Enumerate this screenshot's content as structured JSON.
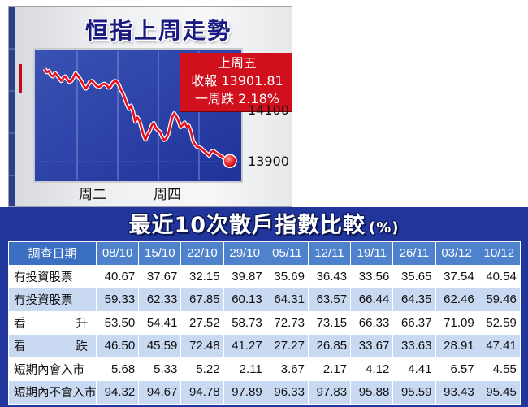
{
  "top": {
    "title": "恒指上周走勢",
    "info": {
      "line1": "上周五",
      "line2": "收報 13901.81",
      "line3": "一周跌 2.18%"
    }
  },
  "chart_data": {
    "type": "line",
    "title": "恒指上周走勢",
    "x_tick_labels": [
      "周二",
      "周四"
    ],
    "y_tick_labels": [
      "14100",
      "13900"
    ],
    "yticks": [
      14100,
      13900
    ],
    "ylim": [
      13830,
      14330
    ],
    "line_color": "#e8101e",
    "background_color": "#2c43a6",
    "series": [
      {
        "values": [
          14262,
          14248,
          14253,
          14236,
          14232,
          14245,
          14236,
          14226,
          14214,
          14225,
          14232,
          14220,
          14210,
          14214,
          14228,
          14244,
          14234,
          14224,
          14210,
          14195,
          14184,
          14196,
          14210,
          14214,
          14205,
          14196,
          14190,
          14193,
          14200,
          14203,
          14198,
          14188,
          14192,
          14206,
          14214,
          14212,
          14200,
          14180,
          14166,
          14145,
          14122,
          14105,
          14118,
          14093,
          14055,
          14072,
          14060,
          14032,
          14002,
          13985,
          14005,
          14018,
          14040,
          14050,
          14030,
          14022,
          14016,
          13998,
          13984,
          13990,
          14005,
          14040,
          14074,
          14088,
          14075,
          14058,
          14034,
          14042,
          14052,
          14036,
          14040,
          14018,
          13982,
          13967,
          13958,
          13956,
          13952,
          13944,
          13937,
          13930,
          13923,
          13938,
          13942,
          13935,
          13930,
          13924,
          13920,
          13914,
          13911,
          13906,
          13902
        ]
      }
    ],
    "end_point": 13901.81
  },
  "table": {
    "title": "最近10次散戶指數比較",
    "unit": "(%)",
    "corner_header": "調查日期",
    "dates": [
      "08/10",
      "15/10",
      "22/10",
      "29/10",
      "05/11",
      "12/11",
      "19/11",
      "26/11",
      "03/12",
      "10/12"
    ],
    "rows": [
      {
        "label": "有投資股票",
        "values": [
          "40.67",
          "37.67",
          "32.15",
          "39.87",
          "35.69",
          "36.43",
          "33.56",
          "35.65",
          "37.54",
          "40.54"
        ]
      },
      {
        "label": "冇投資股票",
        "values": [
          "59.33",
          "62.33",
          "67.85",
          "60.13",
          "64.31",
          "63.57",
          "66.44",
          "64.35",
          "62.46",
          "59.46"
        ]
      },
      {
        "label": "看升",
        "label_parts": [
          "看",
          "升"
        ],
        "values": [
          "53.50",
          "54.41",
          "27.52",
          "58.73",
          "72.73",
          "73.15",
          "66.33",
          "66.37",
          "71.09",
          "52.59"
        ]
      },
      {
        "label": "看跌",
        "label_parts": [
          "看",
          "跌"
        ],
        "values": [
          "46.50",
          "45.59",
          "72.48",
          "41.27",
          "27.27",
          "26.85",
          "33.67",
          "33.63",
          "28.91",
          "47.41"
        ]
      },
      {
        "label": "短期內會入市",
        "values": [
          "5.68",
          "5.33",
          "5.22",
          "2.11",
          "3.67",
          "2.17",
          "4.12",
          "4.41",
          "6.57",
          "4.55"
        ]
      },
      {
        "label": "短期內不會入市",
        "values": [
          "94.32",
          "94.67",
          "94.78",
          "97.89",
          "96.33",
          "97.83",
          "95.88",
          "95.59",
          "93.43",
          "95.45"
        ]
      }
    ]
  }
}
